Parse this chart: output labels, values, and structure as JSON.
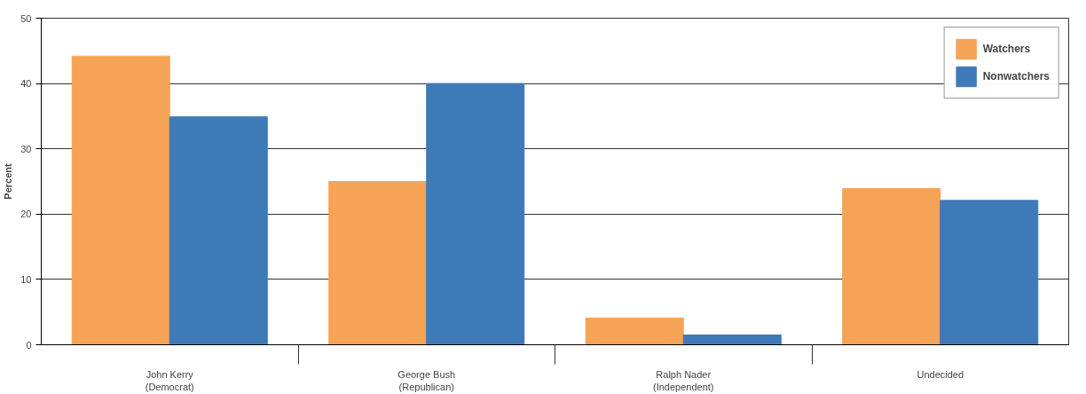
{
  "chart_data": {
    "type": "bar",
    "ylabel": "Percent",
    "categories": [
      "John Kerry\n(Democrat)",
      "George Bush\n(Republican)",
      "Ralph Nader\n(Independent)",
      "Undecided"
    ],
    "series": [
      {
        "name": "Watchers",
        "color": "#f5a354",
        "values": [
          44.2,
          25,
          4.1,
          23.9
        ]
      },
      {
        "name": "Nonwatchers",
        "color": "#3f7ab8",
        "values": [
          34.9,
          40,
          1.5,
          22.1
        ]
      }
    ],
    "ylim": [
      0,
      50
    ],
    "yticks": [
      0,
      10,
      20,
      30,
      40,
      50
    ],
    "grid": "y",
    "legend": "top right"
  }
}
